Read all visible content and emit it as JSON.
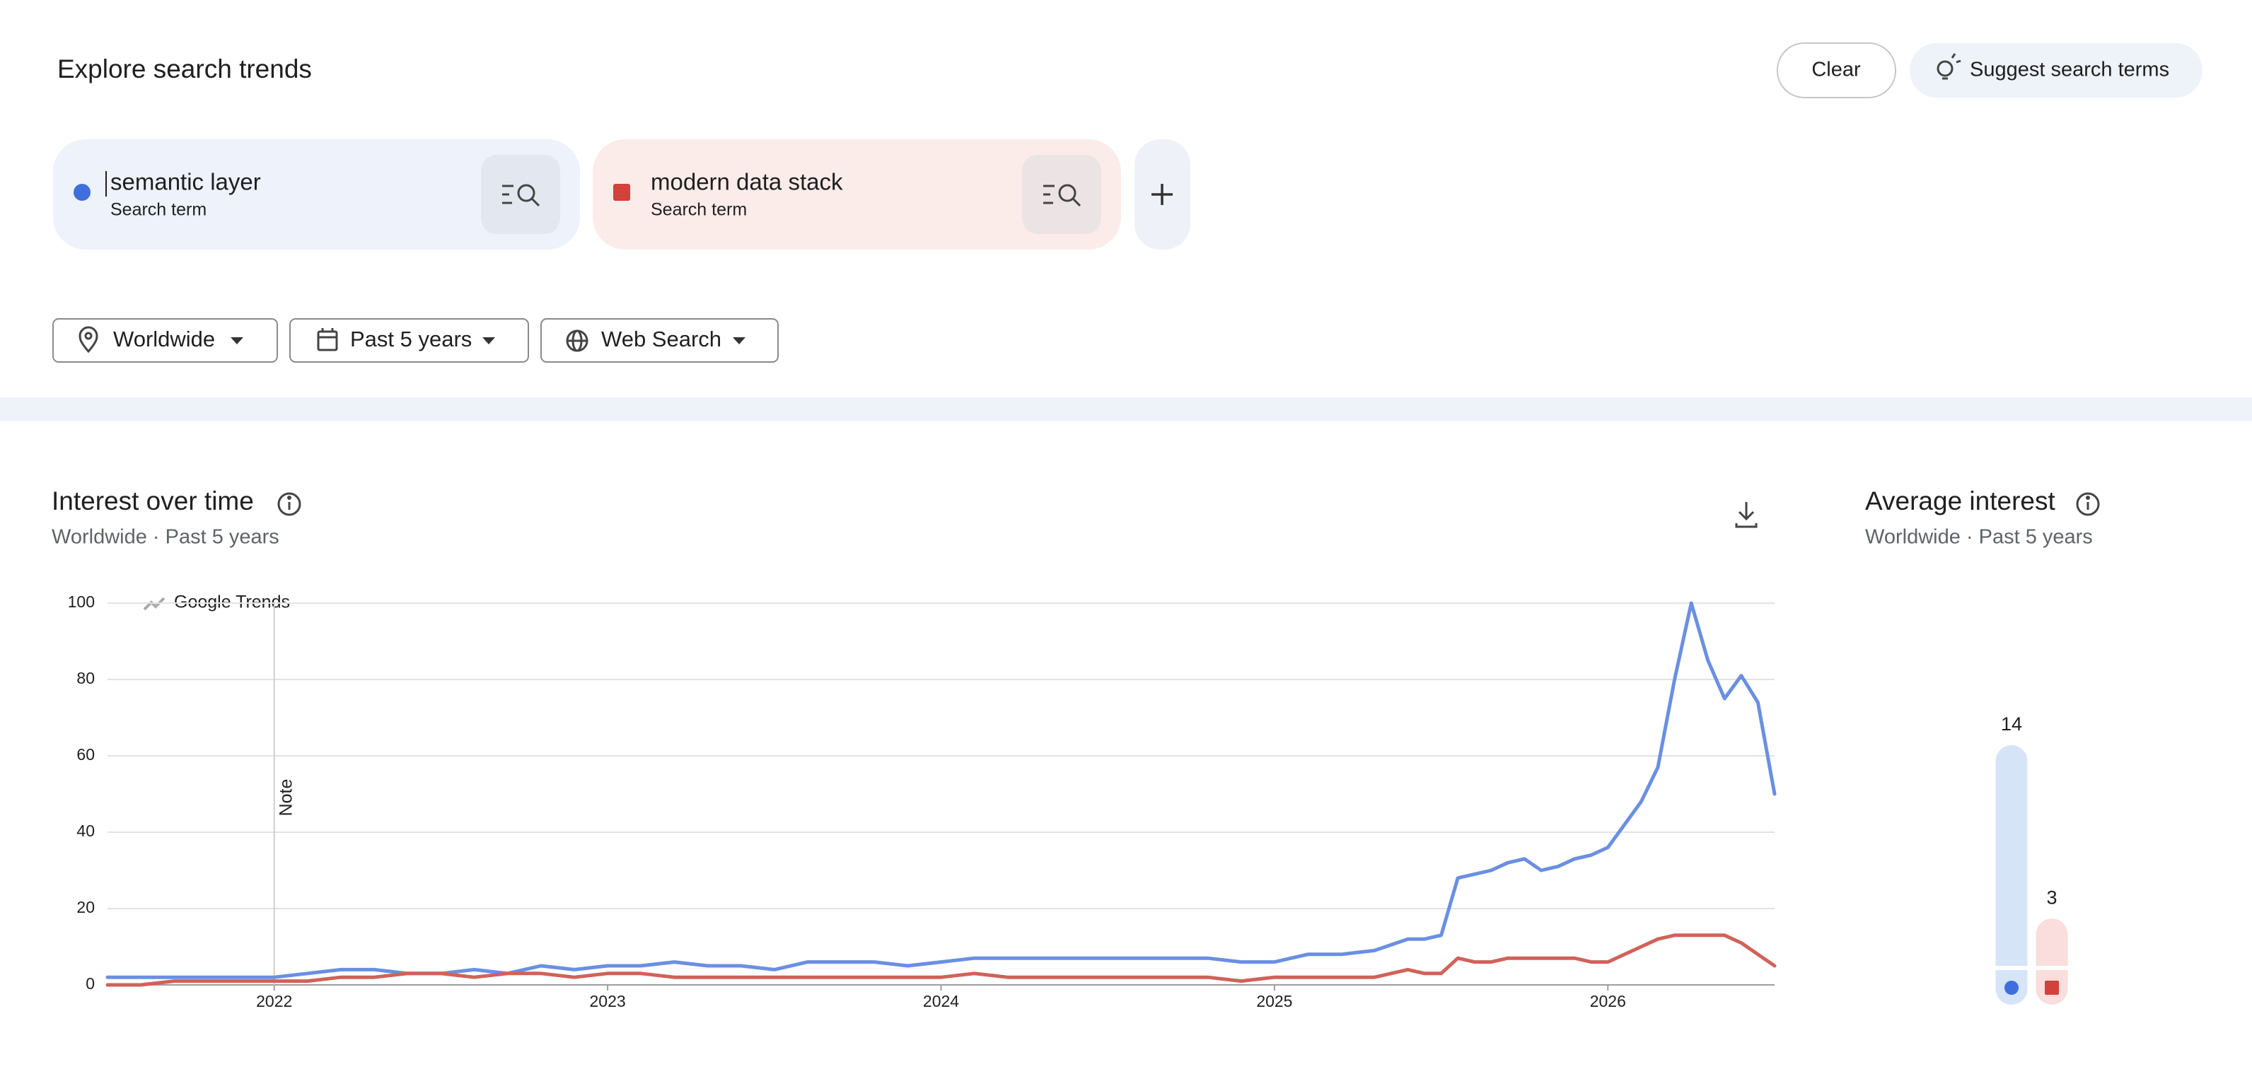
{
  "header": {
    "title": "Explore search trends",
    "clear": "Clear",
    "suggest": "Suggest search terms"
  },
  "terms": [
    {
      "label": "semantic layer",
      "sublabel": "Search term",
      "color": "#3f6fdc"
    },
    {
      "label": "modern data stack",
      "sublabel": "Search term",
      "color": "#d2413a"
    }
  ],
  "filters": [
    "Worldwide",
    "Past 5 years",
    "Web Search"
  ],
  "chart_data": [
    {
      "type": "line",
      "title": "Interest over time",
      "subtitle": "Worldwide · Past 5 years",
      "watermark": "Google Trends",
      "x": [
        2021.5,
        2021.6,
        2021.7,
        2021.8,
        2021.9,
        2022.0,
        2022.1,
        2022.2,
        2022.3,
        2022.4,
        2022.5,
        2022.6,
        2022.7,
        2022.8,
        2022.9,
        2023.0,
        2023.1,
        2023.2,
        2023.3,
        2023.4,
        2023.5,
        2023.6,
        2023.7,
        2023.8,
        2023.9,
        2024.0,
        2024.1,
        2024.2,
        2024.3,
        2024.4,
        2024.5,
        2024.6,
        2024.7,
        2024.8,
        2024.9,
        2025.0,
        2025.1,
        2025.2,
        2025.3,
        2025.4,
        2025.45,
        2025.5,
        2025.55,
        2025.6,
        2025.65,
        2025.7,
        2025.75,
        2025.8,
        2025.85,
        2025.9,
        2025.95,
        2026.0,
        2026.05,
        2026.1,
        2026.15,
        2026.2,
        2026.25,
        2026.3,
        2026.35,
        2026.4,
        2026.45,
        2026.5
      ],
      "series": [
        {
          "color": "#6a8fe3",
          "values": [
            2,
            2,
            2,
            2,
            2,
            2,
            3,
            4,
            4,
            3,
            3,
            4,
            3,
            5,
            4,
            5,
            5,
            6,
            5,
            5,
            4,
            6,
            6,
            6,
            5,
            6,
            7,
            7,
            7,
            7,
            7,
            7,
            7,
            7,
            6,
            6,
            8,
            8,
            9,
            12,
            12,
            13,
            28,
            29,
            30,
            32,
            33,
            30,
            31,
            33,
            34,
            36,
            42,
            48,
            57,
            80,
            100,
            85,
            75,
            81,
            74,
            50
          ]
        },
        {
          "color": "#d0625a",
          "values": [
            0,
            0,
            1,
            1,
            1,
            1,
            1,
            2,
            2,
            3,
            3,
            2,
            3,
            3,
            2,
            3,
            3,
            2,
            2,
            2,
            2,
            2,
            2,
            2,
            2,
            2,
            3,
            2,
            2,
            2,
            2,
            2,
            2,
            2,
            1,
            2,
            2,
            2,
            2,
            4,
            3,
            3,
            7,
            6,
            6,
            7,
            7,
            7,
            7,
            7,
            6,
            6,
            8,
            10,
            12,
            13,
            13,
            13,
            13,
            11,
            8,
            5
          ]
        }
      ],
      "xlim": [
        2021.5,
        2026.5
      ],
      "ylim": [
        0,
        100
      ],
      "xticks": [
        2022,
        2023,
        2024,
        2025,
        2026
      ],
      "yticks": [
        0,
        20,
        40,
        60,
        80,
        100
      ],
      "grid": true,
      "annotations": [
        {
          "x": 2022,
          "label": "Note"
        }
      ]
    },
    {
      "type": "bar",
      "title": "Average interest",
      "subtitle": "Worldwide · Past 5 years",
      "values": [
        14,
        3
      ],
      "colors": [
        "#d6e4f7",
        "#f9dedd"
      ]
    }
  ]
}
